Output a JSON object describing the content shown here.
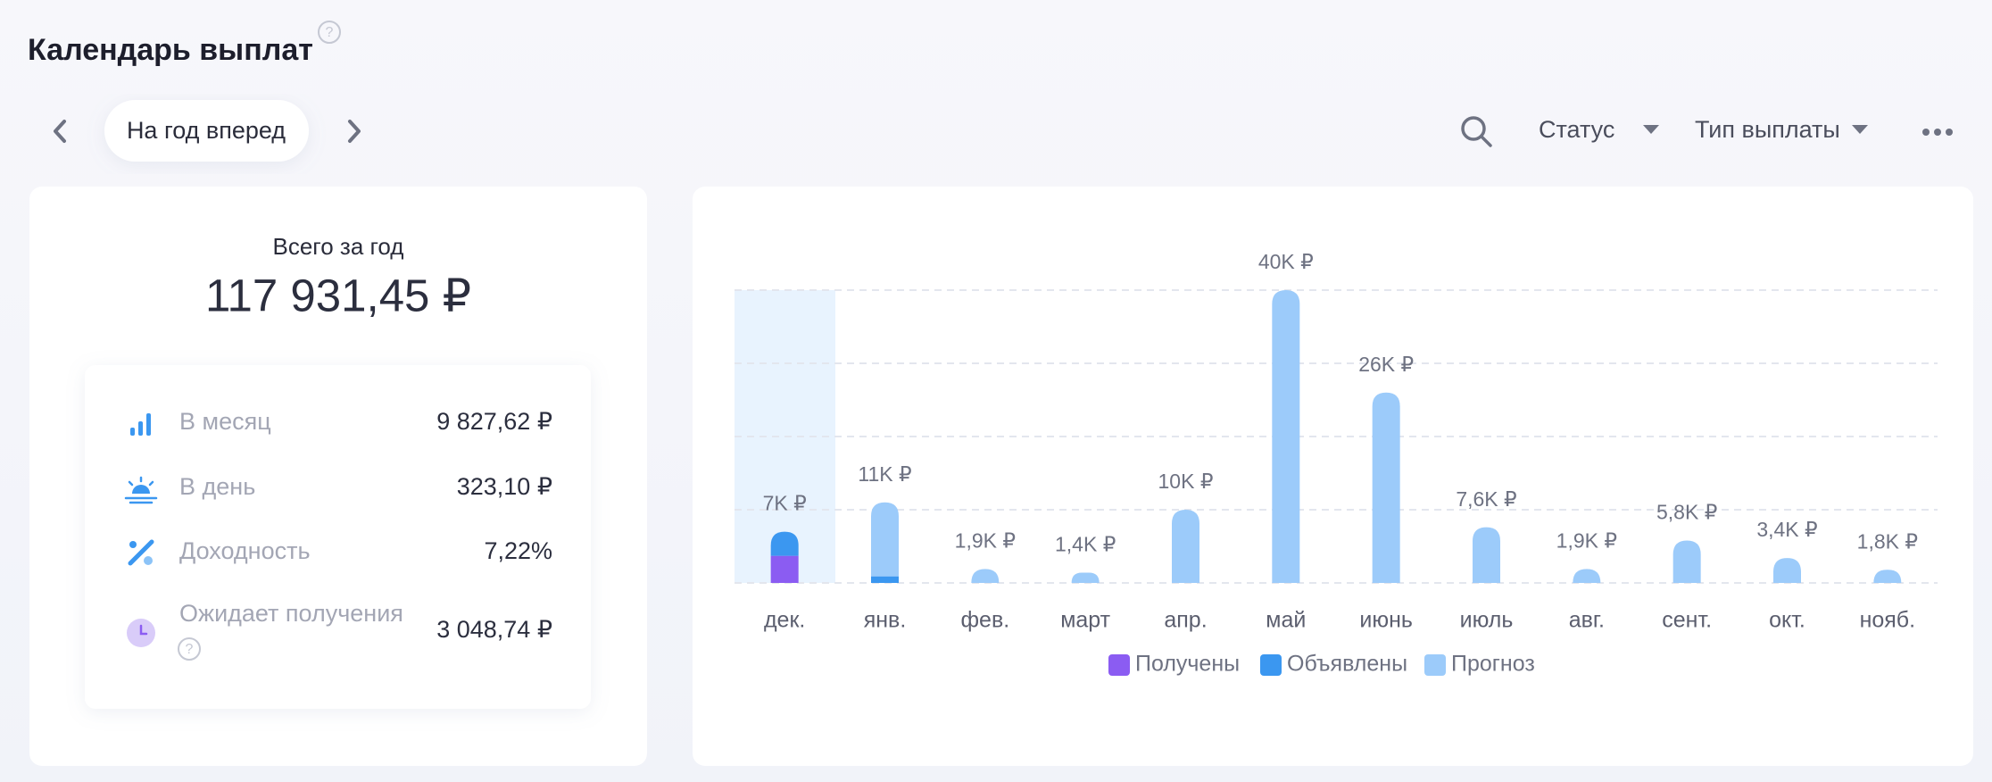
{
  "header": {
    "title": "Календарь выплат"
  },
  "controls": {
    "period": "На год вперед",
    "status": "Статус",
    "payment_type": "Тип выплаты"
  },
  "summary": {
    "total_label": "Всего за год",
    "total_value": "117 931,45 ₽",
    "rows": [
      {
        "label": "В месяц",
        "value": "9 827,62 ₽"
      },
      {
        "label": "В день",
        "value": "323,10 ₽"
      },
      {
        "label": "Доходность",
        "value": "7,22%"
      },
      {
        "label": "Ожидает получения",
        "value": "3 048,74 ₽"
      }
    ]
  },
  "chart_data": {
    "type": "bar",
    "stacked": true,
    "legend": "bottom",
    "grid": true,
    "categories": [
      "дек.",
      "янв.",
      "фев.",
      "март",
      "апр.",
      "май",
      "июнь",
      "июль",
      "авг.",
      "сент.",
      "окт.",
      "нояб."
    ],
    "values": [
      7000,
      11000,
      1900,
      1400,
      10000,
      40000,
      26000,
      7600,
      1900,
      5800,
      3400,
      1800
    ],
    "value_labels": [
      "7K ₽",
      "11K ₽",
      "1,9K ₽",
      "1,4K ₽",
      "10K ₽",
      "40K ₽",
      "26K ₽",
      "7,6K ₽",
      "1,9K ₽",
      "5,8K ₽",
      "3,4K ₽",
      "1,8K ₽"
    ],
    "series": [
      {
        "name": "Получены",
        "color": "#8b5cf2",
        "values": [
          3700,
          0,
          0,
          0,
          0,
          0,
          0,
          0,
          0,
          0,
          0,
          0
        ]
      },
      {
        "name": "Объявлены",
        "color": "#3b97f0",
        "values": [
          3300,
          900,
          0,
          0,
          0,
          0,
          0,
          0,
          0,
          0,
          0,
          0
        ]
      },
      {
        "name": "Прогноз",
        "color": "#9ccbfa",
        "values": [
          0,
          10100,
          1900,
          1400,
          10000,
          40000,
          26000,
          7600,
          1900,
          5800,
          3400,
          1800
        ]
      }
    ],
    "ylim": [
      0,
      40000
    ],
    "yticks": [
      0,
      10000,
      20000,
      30000,
      40000
    ]
  }
}
